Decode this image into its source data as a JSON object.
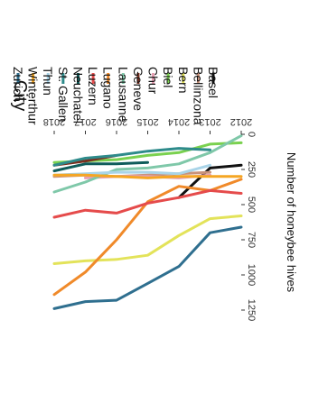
{
  "chart_data": {
    "type": "line",
    "xlabel": "",
    "ylabel": "Number of honeybee hives",
    "x": [
      2012,
      2013,
      2014,
      2015,
      2016,
      2017,
      2018
    ],
    "xlim": [
      2012,
      2018
    ],
    "ylim": [
      0,
      1250
    ],
    "yticks": [
      0,
      250,
      500,
      750,
      1000,
      1250
    ],
    "grid": false,
    "legend_title": "City",
    "legend_position": "right",
    "series": [
      {
        "name": "Basel",
        "color": "#111111",
        "values": [
          220,
          240,
          450,
          null,
          null,
          null,
          null
        ]
      },
      {
        "name": "Bellinzona",
        "color": "#c9927a",
        "values": [
          null,
          270,
          280,
          290,
          300,
          290,
          300
        ]
      },
      {
        "name": "Bern",
        "color": "#e3e35a",
        "values": [
          580,
          600,
          720,
          860,
          890,
          900,
          920
        ]
      },
      {
        "name": "Biel",
        "color": "#7ad14f",
        "values": [
          60,
          70,
          130,
          150,
          180,
          190,
          200
        ]
      },
      {
        "name": "Chur",
        "color": "#e69fb2",
        "values": [
          null,
          290,
          310,
          300,
          300,
          310,
          null
        ]
      },
      {
        "name": "Geneve",
        "color": "#7a2f1f",
        "values": [
          null,
          null,
          null,
          null,
          150,
          190,
          220
        ]
      },
      {
        "name": "Lausanne",
        "color": "#7fc8a9",
        "values": [
          10,
          130,
          210,
          240,
          250,
          340,
          410
        ]
      },
      {
        "name": "Lugano",
        "color": "#f08a2a",
        "values": [
          320,
          400,
          370,
          480,
          750,
          980,
          1140
        ]
      },
      {
        "name": "Luzern",
        "color": "#e54b4b",
        "values": [
          420,
          400,
          450,
          490,
          560,
          540,
          590
        ]
      },
      {
        "name": "Neuchatel",
        "color": "#0f5c5a",
        "values": [
          null,
          null,
          null,
          200,
          210,
          210,
          260
        ]
      },
      {
        "name": "St. Gallen",
        "color": "#2e8b8b",
        "values": [
          null,
          110,
          100,
          120,
          150,
          170,
          220
        ]
      },
      {
        "name": "Thun",
        "color": "#a9d4e8",
        "values": [
          null,
          220,
          280,
          270,
          270,
          280,
          290
        ]
      },
      {
        "name": "Winterthur",
        "color": "#f5a623",
        "values": [
          300,
          300,
          300,
          310,
          300,
          290,
          290
        ]
      },
      {
        "name": "Zurich",
        "color": "#2f6f8f",
        "values": [
          660,
          700,
          940,
          1060,
          1180,
          1190,
          1240
        ]
      }
    ]
  }
}
